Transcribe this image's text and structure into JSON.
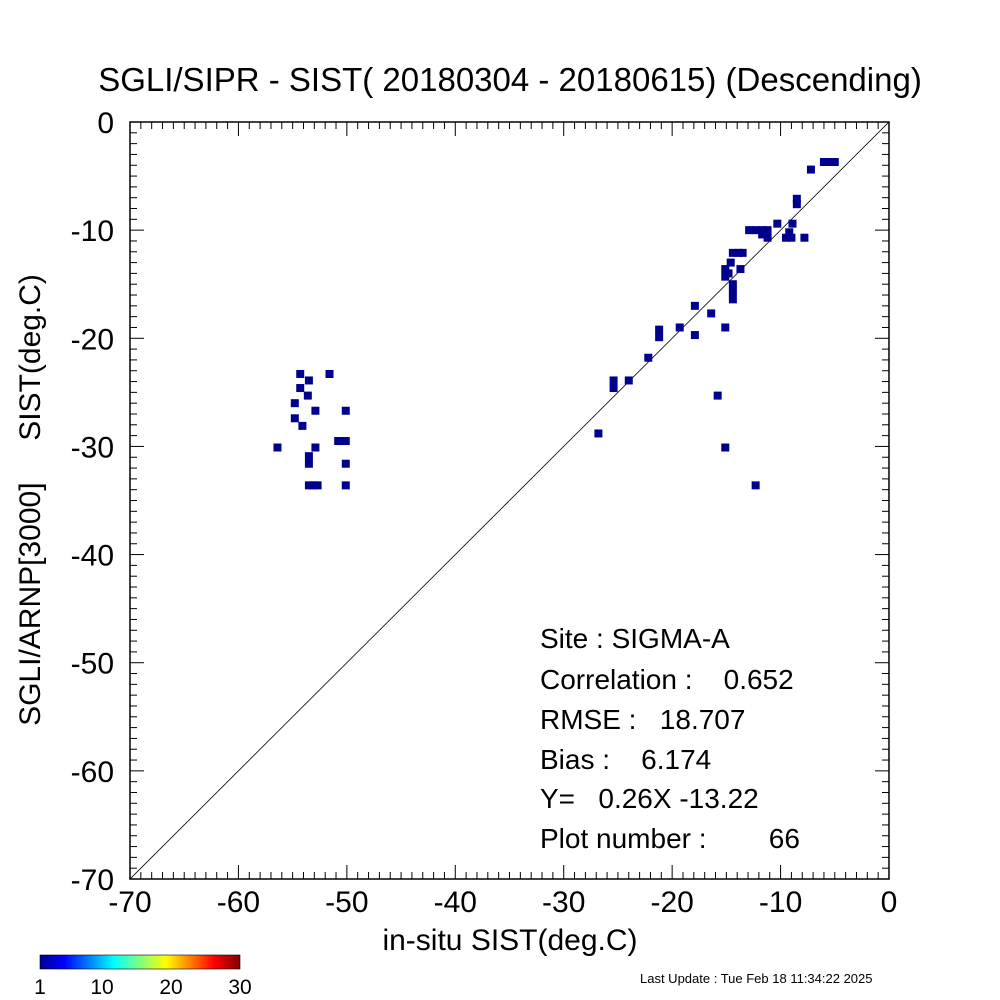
{
  "chart_data": {
    "type": "scatter",
    "title": "SGLI/SIPR - SIST( 20180304 - 20180615) (Descending)",
    "xlabel": "in-situ SIST(deg.C)",
    "ylabel": "SGLI/ARNP[3000]     SIST(deg.C)",
    "xlim": [
      -70,
      0
    ],
    "ylim": [
      -70,
      0
    ],
    "x_ticks": [
      -70,
      -60,
      -50,
      -40,
      -30,
      -20,
      -10,
      0
    ],
    "y_ticks": [
      -70,
      -60,
      -50,
      -40,
      -30,
      -20,
      -10,
      0
    ],
    "grid": false,
    "reference_line": "1:1",
    "point_color": "#00008f",
    "stats": {
      "site": "Site : SIGMA-A",
      "correlation": "Correlation :    0.652",
      "rmse": "RMSE :   18.707",
      "bias": "Bias :    6.174",
      "regression": "Y=   0.26X -13.22",
      "plot_number": "Plot number :        66"
    },
    "colorbar": {
      "ticks": [
        "1",
        "10",
        "20",
        "30"
      ],
      "min": 1,
      "max": 30
    },
    "points": [
      [
        -56.4,
        -30.1
      ],
      [
        -54.8,
        -26.0
      ],
      [
        -54.8,
        -27.4
      ],
      [
        -54.3,
        -23.3
      ],
      [
        -54.3,
        -24.6
      ],
      [
        -54.1,
        -28.1
      ],
      [
        -53.6,
        -25.3
      ],
      [
        -53.5,
        -23.9
      ],
      [
        -53.5,
        -30.9
      ],
      [
        -53.5,
        -31.6
      ],
      [
        -53.5,
        -33.6
      ],
      [
        -53.1,
        -33.6
      ],
      [
        -52.9,
        -30.1
      ],
      [
        -52.9,
        -26.7
      ],
      [
        -52.7,
        -33.6
      ],
      [
        -51.6,
        -23.3
      ],
      [
        -50.8,
        -29.5
      ],
      [
        -50.5,
        -29.5
      ],
      [
        -50.1,
        -29.5
      ],
      [
        -50.1,
        -26.7
      ],
      [
        -50.1,
        -31.6
      ],
      [
        -50.1,
        -33.6
      ],
      [
        -26.8,
        -28.8
      ],
      [
        -25.4,
        -23.9
      ],
      [
        -25.4,
        -24.6
      ],
      [
        -24.0,
        -23.9
      ],
      [
        -22.2,
        -21.8
      ],
      [
        -21.2,
        -19.2
      ],
      [
        -21.2,
        -19.9
      ],
      [
        -19.3,
        -19.0
      ],
      [
        -17.9,
        -17.0
      ],
      [
        -17.9,
        -19.7
      ],
      [
        -16.4,
        -17.7
      ],
      [
        -15.8,
        -25.3
      ],
      [
        -15.1,
        -13.6
      ],
      [
        -15.1,
        -14.3
      ],
      [
        -15.1,
        -19.0
      ],
      [
        -15.1,
        -30.1
      ],
      [
        -14.6,
        -13.0
      ],
      [
        -14.4,
        -12.1
      ],
      [
        -14.4,
        -15.0
      ],
      [
        -14.4,
        -15.7
      ],
      [
        -14.4,
        -16.4
      ],
      [
        -13.9,
        -12.1
      ],
      [
        -13.7,
        -13.6
      ],
      [
        -13.5,
        -12.1
      ],
      [
        -12.9,
        -10.0
      ],
      [
        -12.3,
        -10.0
      ],
      [
        -12.3,
        -33.6
      ],
      [
        -11.7,
        -10.0
      ],
      [
        -11.2,
        -10.0
      ],
      [
        -11.2,
        -10.7
      ],
      [
        -10.3,
        -9.4
      ],
      [
        -9.5,
        -10.7
      ],
      [
        -9.0,
        -10.7
      ],
      [
        -8.9,
        -9.4
      ],
      [
        -8.5,
        -7.1
      ],
      [
        -8.5,
        -7.6
      ],
      [
        -7.8,
        -10.7
      ],
      [
        -7.2,
        -4.4
      ],
      [
        -6.0,
        -3.7
      ],
      [
        -5.5,
        -3.7
      ],
      [
        -5.0,
        -3.7
      ],
      [
        -14.8,
        -14.0
      ],
      [
        -11.7,
        -10.4
      ],
      [
        -9.2,
        -10.2
      ]
    ]
  },
  "footer": {
    "last_update": "Last Update : Tue Feb 18 11:34:22 2025"
  }
}
